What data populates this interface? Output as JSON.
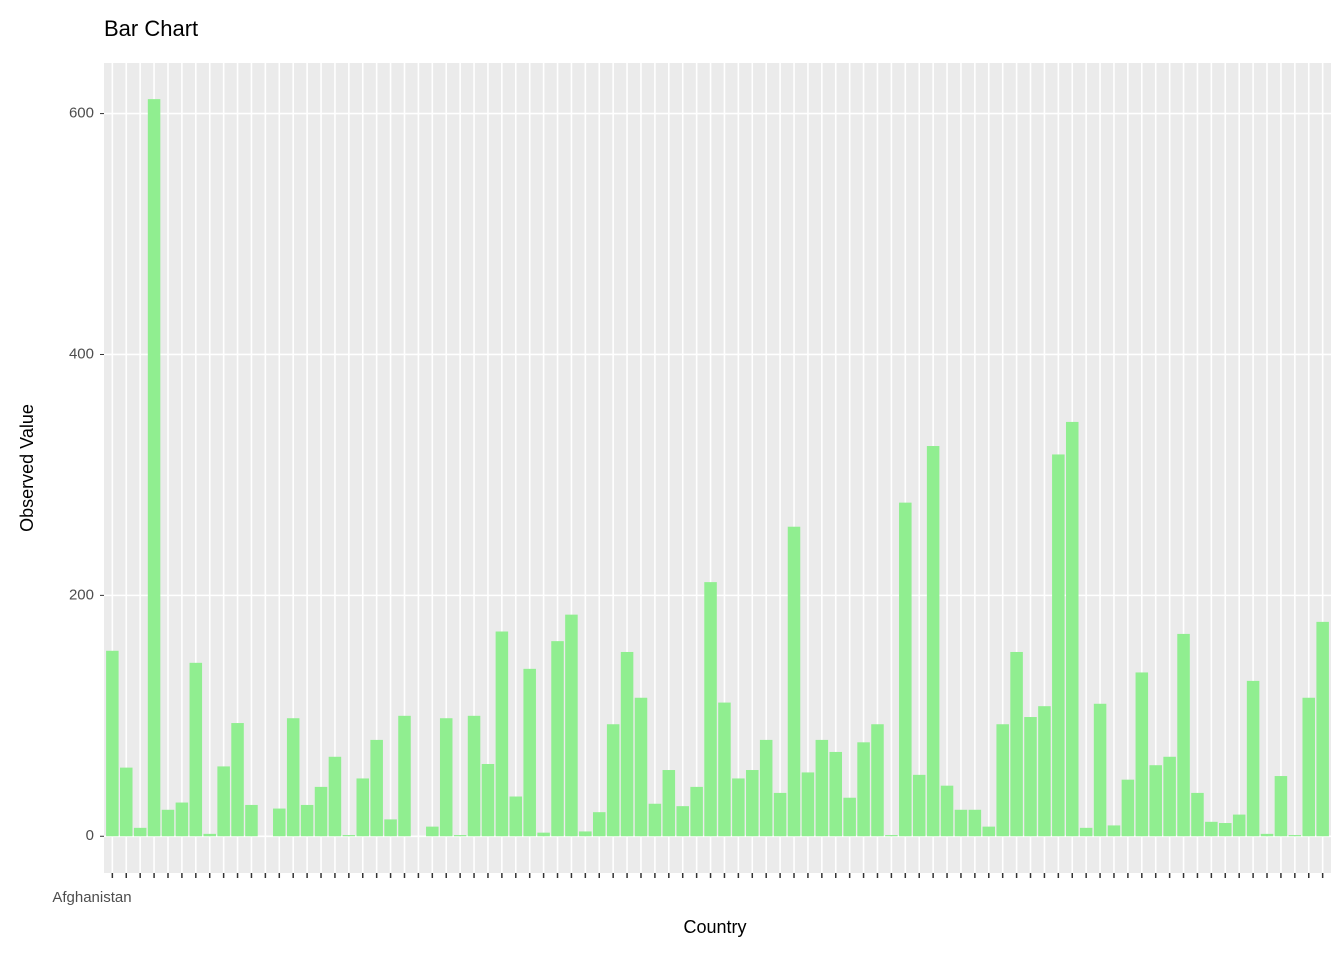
{
  "chart_data": {
    "type": "bar",
    "title": "Bar Chart",
    "x_label": "Country",
    "y_label": "Observed Value",
    "categories": [
      "Afghanistan",
      null,
      null,
      null,
      null,
      null,
      null,
      null,
      null,
      null,
      null,
      null,
      null,
      null,
      null,
      null,
      null,
      null,
      null,
      null,
      null,
      null,
      null,
      null,
      null,
      null,
      null,
      null,
      null,
      null,
      null,
      null,
      null,
      null,
      null,
      null,
      null,
      null,
      null,
      null,
      null,
      null,
      null,
      null,
      null,
      null,
      null,
      null,
      null,
      null,
      null,
      null,
      null,
      null,
      null,
      null,
      null,
      null,
      null,
      null,
      null,
      null,
      null,
      null,
      null,
      null,
      null,
      null,
      null,
      null,
      null,
      null,
      null,
      null,
      null,
      null,
      null,
      null,
      null,
      null,
      null,
      null,
      null,
      null,
      null,
      null,
      null,
      null
    ],
    "values": [
      154,
      57,
      7,
      612,
      22,
      28,
      144,
      2,
      58,
      94,
      26,
      0,
      23,
      98,
      26,
      41,
      66,
      1,
      48,
      80,
      14,
      100,
      0,
      8,
      98,
      1,
      100,
      60,
      170,
      33,
      139,
      3,
      162,
      184,
      4,
      20,
      93,
      153,
      115,
      27,
      55,
      25,
      41,
      211,
      111,
      48,
      55,
      80,
      36,
      257,
      53,
      80,
      70,
      32,
      78,
      93,
      1,
      277,
      51,
      324,
      42,
      22,
      22,
      8,
      93,
      153,
      99,
      108,
      317,
      344,
      7,
      110,
      9,
      47,
      136,
      59,
      66,
      168,
      36,
      12,
      11,
      18,
      129,
      2,
      50,
      1,
      115,
      178
    ],
    "color": "#90ee90",
    "ylim": [
      -30.5,
      642
    ],
    "yticks": [
      0,
      200,
      400,
      600
    ],
    "grid": true
  }
}
